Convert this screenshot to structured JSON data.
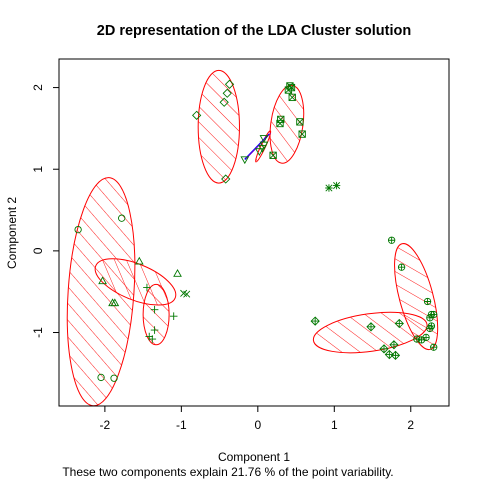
{
  "chart_data": {
    "type": "scatter",
    "title": "2D representation of the LDA Cluster solution",
    "xlabel": "Component 1",
    "ylabel": "Component 2",
    "subtitle": "These two components explain 21.76 % of the point variability.",
    "xlim": [
      -2.6,
      2.5
    ],
    "ylim": [
      -1.9,
      2.35
    ],
    "xticks": [
      -2,
      -1,
      0,
      1,
      2
    ],
    "yticks": [
      -1,
      0,
      1,
      2
    ],
    "grid": false,
    "colors": {
      "ellipse": "#ff0000",
      "points": "#007700",
      "line_blue": "#0000ff",
      "line_purple": "#8800cc",
      "frame": "#000000"
    },
    "clusters": [
      {
        "id": 1,
        "symbol": "circle",
        "ellipse": {
          "cx": -2.05,
          "cy": -0.5,
          "rx": 0.43,
          "ry": 1.4,
          "angle": 4
        },
        "points": [
          [
            -2.35,
            0.26
          ],
          [
            -1.78,
            0.4
          ],
          [
            -2.05,
            -1.55
          ],
          [
            -1.88,
            -1.56
          ]
        ]
      },
      {
        "id": 2,
        "symbol": "triangle",
        "ellipse": {
          "cx": -1.6,
          "cy": -0.38,
          "rx": 0.56,
          "ry": 0.22,
          "angle": 22
        },
        "points": [
          [
            -2.03,
            -0.37
          ],
          [
            -1.9,
            -0.64
          ],
          [
            -1.87,
            -0.64
          ],
          [
            -1.55,
            -0.13
          ],
          [
            -1.05,
            -0.28
          ]
        ]
      },
      {
        "id": 3,
        "symbol": "plus",
        "ellipse": {
          "cx": -1.33,
          "cy": -0.78,
          "rx": 0.17,
          "ry": 0.37,
          "angle": 0
        },
        "points": [
          [
            -1.45,
            -0.45
          ],
          [
            -1.35,
            -0.72
          ],
          [
            -1.35,
            -0.97
          ],
          [
            -1.42,
            -1.05
          ],
          [
            -1.38,
            -1.08
          ],
          [
            -1.1,
            -0.8
          ]
        ]
      },
      {
        "id": 4,
        "symbol": "cross",
        "ellipse": null,
        "points": [
          [
            -0.93,
            -0.53
          ],
          [
            -0.97,
            -0.52
          ]
        ]
      },
      {
        "id": 5,
        "symbol": "diamond",
        "ellipse": {
          "cx": -0.51,
          "cy": 1.52,
          "rx": 0.27,
          "ry": 0.69,
          "angle": 0
        },
        "points": [
          [
            -0.8,
            1.66
          ],
          [
            -0.37,
            2.04
          ],
          [
            -0.4,
            1.93
          ],
          [
            -0.44,
            1.82
          ],
          [
            -0.42,
            0.88
          ]
        ]
      },
      {
        "id": 6,
        "symbol": "triangle-down",
        "ellipse": {
          "cx": 0.07,
          "cy": 1.28,
          "rx": 0.03,
          "ry": 0.21,
          "angle": 25
        },
        "points": [
          [
            -0.17,
            1.12
          ],
          [
            0.08,
            1.38
          ],
          [
            0.08,
            1.3
          ],
          [
            0.06,
            1.26
          ],
          [
            0.02,
            1.22
          ]
        ],
        "line": [
          [
            -0.17,
            1.12
          ],
          [
            0.15,
            1.43
          ]
        ]
      },
      {
        "id": 7,
        "symbol": "square-cross",
        "ellipse": {
          "cx": 0.38,
          "cy": 1.55,
          "rx": 0.21,
          "ry": 0.48,
          "angle": 8
        },
        "points": [
          [
            0.42,
            2.02
          ],
          [
            0.44,
            2.0
          ],
          [
            0.4,
            1.97
          ],
          [
            0.45,
            1.88
          ],
          [
            0.3,
            1.61
          ],
          [
            0.29,
            1.56
          ],
          [
            0.55,
            1.58
          ],
          [
            0.58,
            1.43
          ],
          [
            0.2,
            1.17
          ]
        ]
      },
      {
        "id": 8,
        "symbol": "asterisk",
        "ellipse": null,
        "points": [
          [
            0.93,
            0.77
          ],
          [
            1.03,
            0.8
          ]
        ]
      },
      {
        "id": 9,
        "symbol": "diamond-plus",
        "ellipse": {
          "cx": 1.47,
          "cy": -1.0,
          "rx": 0.75,
          "ry": 0.23,
          "angle": -8
        },
        "points": [
          [
            0.75,
            -0.86
          ],
          [
            1.48,
            -0.93
          ],
          [
            1.65,
            -1.2
          ],
          [
            1.72,
            -1.27
          ],
          [
            1.8,
            -1.28
          ],
          [
            1.78,
            -1.15
          ],
          [
            1.85,
            -0.89
          ]
        ]
      },
      {
        "id": 10,
        "symbol": "circle-plus",
        "ellipse": {
          "cx": 2.07,
          "cy": -0.56,
          "rx": 0.22,
          "ry": 0.67,
          "angle": -15
        },
        "points": [
          [
            1.75,
            0.13
          ],
          [
            1.88,
            -0.2
          ],
          [
            2.22,
            -0.62
          ],
          [
            2.27,
            -0.78
          ],
          [
            2.3,
            -0.78
          ],
          [
            2.25,
            -0.82
          ],
          [
            2.27,
            -0.92
          ],
          [
            2.25,
            -0.95
          ],
          [
            2.2,
            -1.06
          ],
          [
            2.14,
            -1.09
          ],
          [
            2.08,
            -1.08
          ],
          [
            2.3,
            -1.18
          ]
        ]
      }
    ]
  }
}
